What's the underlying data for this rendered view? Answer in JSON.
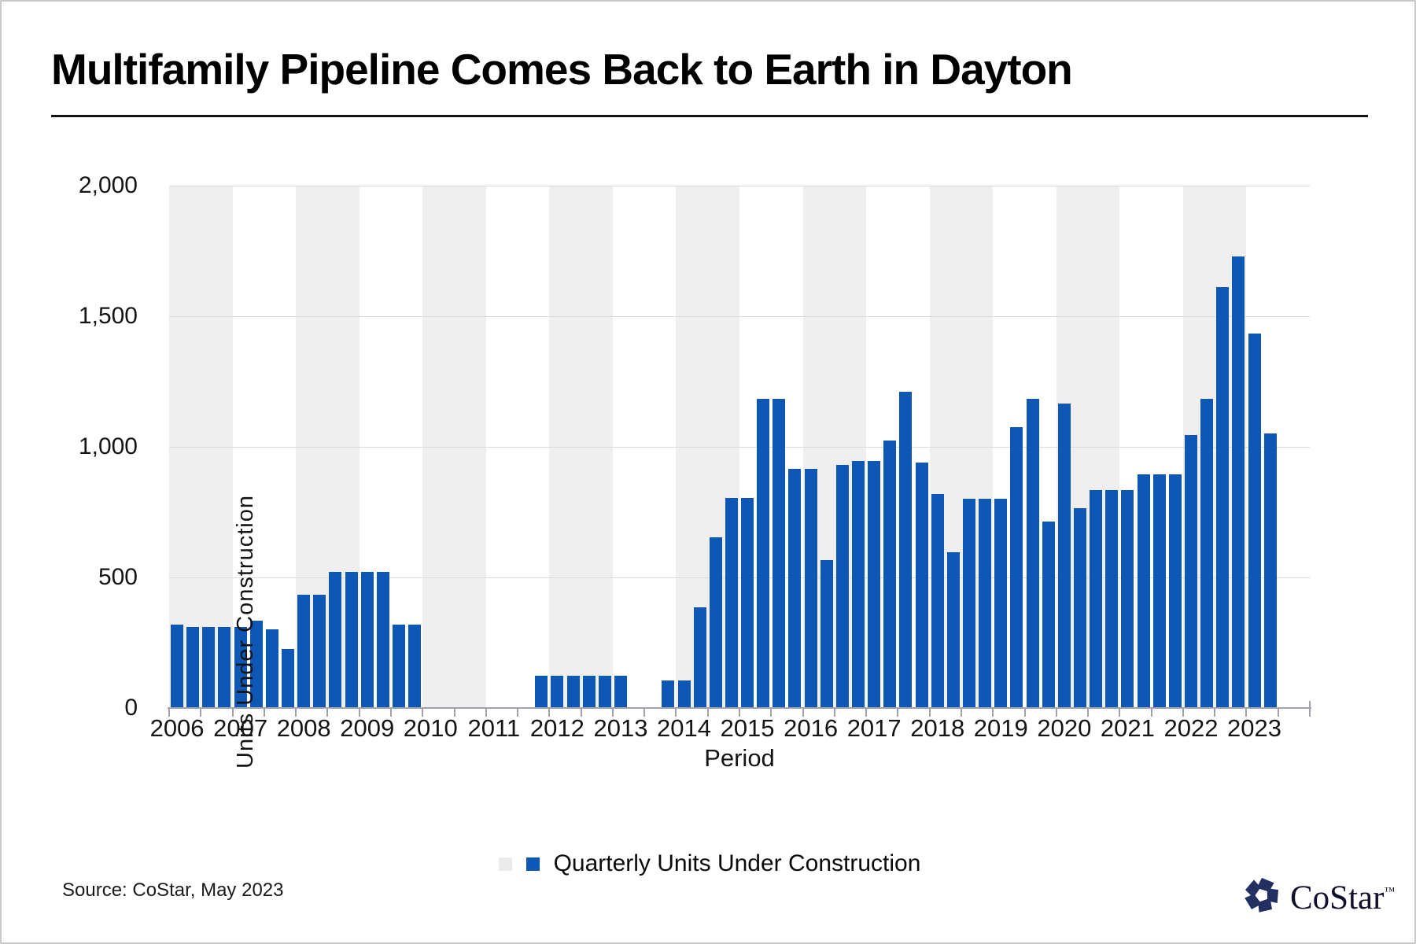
{
  "title": "Multifamily Pipeline Comes Back to Earth in Dayton",
  "axes": {
    "x_label": "Period",
    "y_label": "Units Under Construction"
  },
  "legend": {
    "blank_swatch_color": "#ebebeb",
    "series_swatch_color": "#0e57b5",
    "series_label": "Quarterly Units Under Construction"
  },
  "footer": {
    "source": "Source: CoStar, May 2023",
    "logo_text": "CoStar",
    "logo_tm": "™"
  },
  "colors": {
    "bar": "#0e57b5",
    "year_band": "#efefef",
    "gridline": "#dadada",
    "axis": "#a0a4aa",
    "logo_navy": "#232e61"
  },
  "chart_data": {
    "type": "bar",
    "title": "Multifamily Pipeline Comes Back to Earth in Dayton",
    "xlabel": "Period",
    "ylabel": "Units Under Construction",
    "ylim": [
      0,
      2000
    ],
    "grid": true,
    "legend_position": "bottom",
    "alternating_year_bands": "even years shaded light gray starting 2006",
    "x_minor_ticks": "every half year",
    "series_name": "Quarterly Units Under Construction",
    "y_ticks": [
      {
        "value": 0,
        "label": "0"
      },
      {
        "value": 500,
        "label": "500"
      },
      {
        "value": 1000,
        "label": "1,000"
      },
      {
        "value": 1500,
        "label": "1,500"
      },
      {
        "value": 2000,
        "label": "2,000"
      }
    ],
    "quarterly_units_by_year": [
      {
        "year": "2006",
        "values": [
          320,
          310,
          310,
          310
        ]
      },
      {
        "year": "2007",
        "values": [
          310,
          335,
          300,
          225
        ]
      },
      {
        "year": "2008",
        "values": [
          435,
          435,
          520,
          520
        ]
      },
      {
        "year": "2009",
        "values": [
          520,
          520,
          320,
          320
        ]
      },
      {
        "year": "2010",
        "values": [
          0,
          0,
          0,
          0
        ]
      },
      {
        "year": "2011",
        "values": [
          0,
          0,
          0,
          125
        ]
      },
      {
        "year": "2012",
        "values": [
          125,
          125,
          125,
          125
        ]
      },
      {
        "year": "2013",
        "values": [
          125,
          0,
          0,
          105
        ]
      },
      {
        "year": "2014",
        "values": [
          105,
          385,
          655,
          805
        ]
      },
      {
        "year": "2015",
        "values": [
          805,
          1185,
          1185,
          915
        ]
      },
      {
        "year": "2016",
        "values": [
          915,
          565,
          930,
          945
        ]
      },
      {
        "year": "2017",
        "values": [
          945,
          1025,
          1210,
          940
        ]
      },
      {
        "year": "2018",
        "values": [
          820,
          595,
          800,
          800
        ]
      },
      {
        "year": "2019",
        "values": [
          800,
          1075,
          1185,
          715
        ]
      },
      {
        "year": "2020",
        "values": [
          1165,
          765,
          835,
          835
        ]
      },
      {
        "year": "2021",
        "values": [
          835,
          895,
          895,
          895
        ]
      },
      {
        "year": "2022",
        "values": [
          1045,
          1185,
          1610,
          1730
        ]
      },
      {
        "year": "2023",
        "values": [
          1435,
          1050
        ]
      }
    ]
  }
}
